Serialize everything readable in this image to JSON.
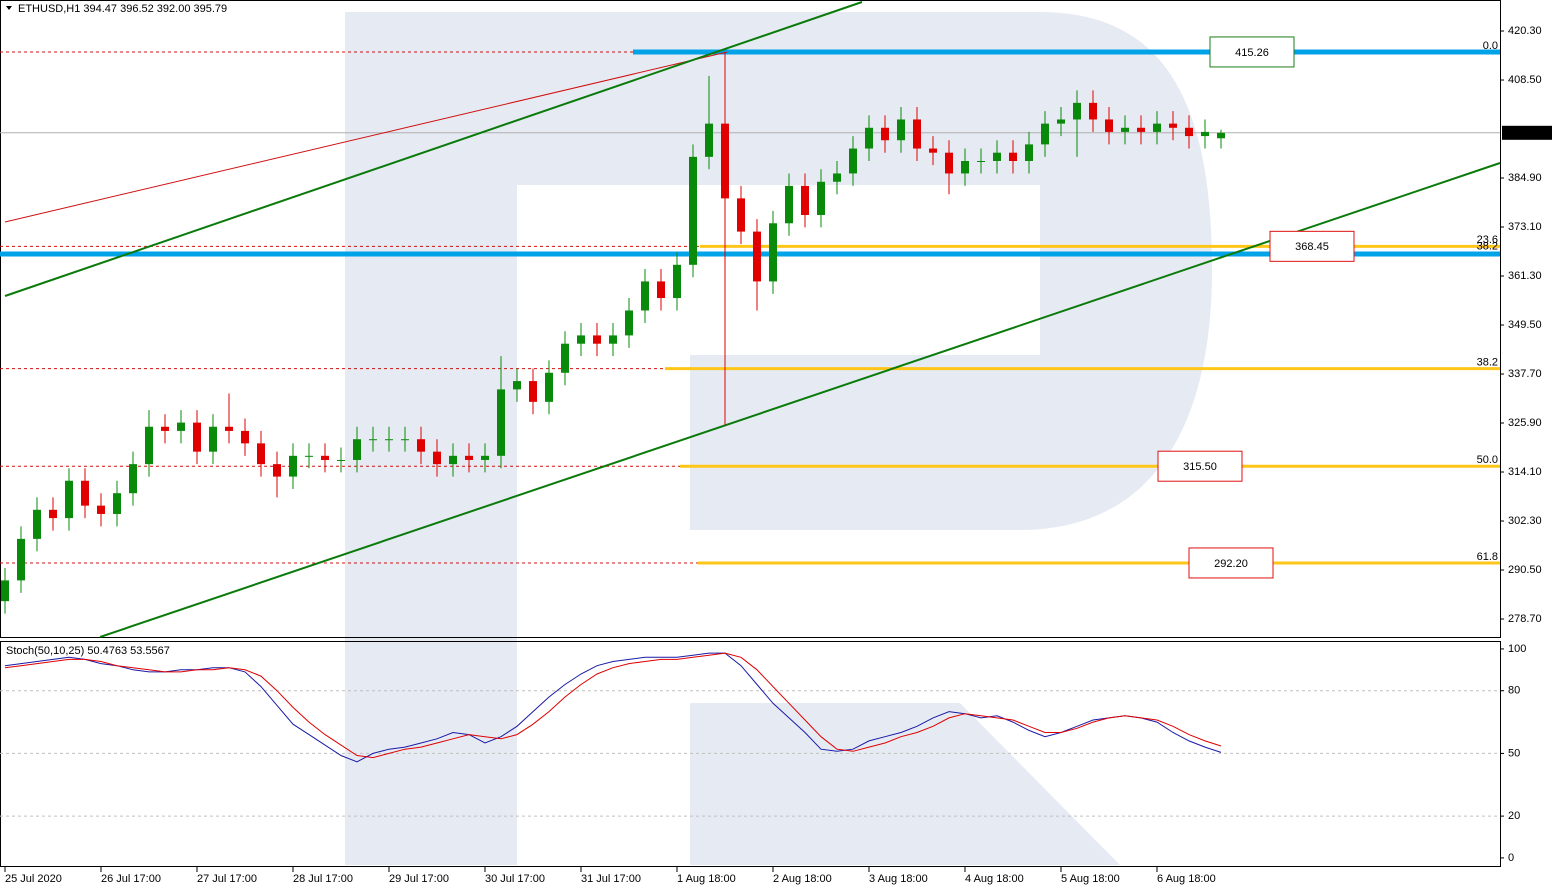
{
  "chart_data": {
    "type": "candlestick",
    "title": "ETHUSD,H1  394.47 396.52 392.00 395.79",
    "x": [
      0,
      4,
      8,
      12,
      16,
      20,
      24,
      28,
      32,
      36,
      40,
      44,
      48,
      52,
      56,
      60,
      64,
      68,
      72,
      76,
      80,
      84,
      88,
      92,
      96,
      100,
      104,
      108,
      112,
      116,
      120,
      124,
      128,
      132,
      136,
      140,
      144,
      148,
      152,
      156,
      160,
      164,
      168,
      172,
      176,
      180,
      184,
      188,
      192,
      196,
      200,
      204,
      208,
      212,
      216,
      220,
      224,
      228,
      232,
      236,
      240,
      244,
      248,
      252,
      256,
      260,
      264,
      268,
      272,
      276,
      280,
      284,
      288,
      292,
      296,
      300,
      304
    ],
    "open": [
      283,
      288,
      298,
      305,
      303,
      312,
      306,
      304,
      309,
      316,
      325,
      324,
      326,
      319,
      325,
      324,
      321,
      316,
      313,
      318,
      318,
      317,
      317,
      322,
      322,
      322,
      322,
      319,
      316,
      318,
      317,
      318,
      334,
      336,
      331,
      338,
      345,
      347,
      345,
      347,
      353,
      360,
      356,
      364,
      390,
      398,
      380,
      372,
      360,
      374,
      383,
      376,
      384,
      386,
      392,
      397,
      394,
      399,
      392,
      391,
      386,
      389,
      389,
      391,
      389,
      393,
      398,
      399,
      403,
      399,
      396,
      397,
      396,
      398,
      397,
      395,
      394.47
    ],
    "high": [
      291,
      301,
      308,
      308,
      315,
      315,
      309,
      312,
      319,
      329,
      328,
      329,
      329,
      328,
      333,
      327,
      324,
      319,
      321,
      321,
      321,
      320,
      325,
      325,
      325,
      325,
      325,
      322,
      321,
      321,
      321,
      342,
      339,
      339,
      341,
      348,
      350,
      350,
      350,
      356,
      363,
      363,
      367,
      393,
      409.5,
      415.26,
      383,
      375,
      377,
      386,
      386,
      387,
      389,
      395,
      400,
      400,
      402,
      402,
      395,
      394,
      392,
      392,
      394,
      394,
      396,
      401,
      402,
      406,
      406,
      402,
      400,
      400,
      401,
      401,
      400,
      399,
      396.52
    ],
    "low": [
      280,
      285,
      295,
      300,
      300,
      303,
      301,
      301,
      306,
      313,
      321,
      321,
      316,
      316,
      321,
      318,
      313,
      308,
      310,
      315,
      314,
      314,
      314,
      319,
      319,
      319,
      316,
      313,
      313,
      314,
      314,
      315,
      331,
      328,
      328,
      335,
      342,
      342,
      342,
      344,
      350,
      353,
      353,
      361,
      387,
      325.4,
      369,
      353,
      357,
      371,
      373,
      373,
      381,
      383,
      389,
      391,
      391,
      389,
      388,
      381,
      383,
      386,
      386,
      386,
      386,
      390,
      395,
      390,
      396,
      393,
      393,
      393,
      393,
      394,
      392,
      392,
      392
    ],
    "close": [
      288,
      298,
      305,
      303,
      312,
      306,
      304,
      309,
      316,
      325,
      324,
      326,
      319,
      325,
      324,
      321,
      316,
      313,
      318,
      318,
      317,
      317,
      322,
      322,
      322,
      322,
      319,
      316,
      318,
      317,
      318,
      334,
      336,
      331,
      338,
      345,
      347,
      345,
      347,
      353,
      360,
      356,
      364,
      390,
      398,
      380,
      372,
      360,
      374,
      383,
      376,
      384,
      386,
      392,
      397,
      394,
      399,
      392,
      391,
      386,
      389,
      389,
      391,
      389,
      393,
      398,
      399,
      403,
      399,
      396,
      397,
      396,
      398,
      397,
      395,
      396,
      395.79
    ],
    "up_color": "#0a8a0a",
    "down_color": "#e00000",
    "xlim": [
      -1.25,
      373.75
    ],
    "ylim": [
      274.37,
      427.77
    ],
    "xticks": [
      {
        "value": 0,
        "label": "25 Jul 2020"
      },
      {
        "value": 24,
        "label": "26 Jul 17:00"
      },
      {
        "value": 48,
        "label": "27 Jul 17:00"
      },
      {
        "value": 72,
        "label": "28 Jul 17:00"
      },
      {
        "value": 96,
        "label": "29 Jul 17:00"
      },
      {
        "value": 120,
        "label": "30 Jul 17:00"
      },
      {
        "value": 144,
        "label": "31 Jul 17:00"
      },
      {
        "value": 168,
        "label": "1 Aug 18:00"
      },
      {
        "value": 192,
        "label": "2 Aug 18:00"
      },
      {
        "value": 216,
        "label": "3 Aug 18:00"
      },
      {
        "value": 240,
        "label": "4 Aug 18:00"
      },
      {
        "value": 264,
        "label": "5 Aug 18:00"
      },
      {
        "value": 288,
        "label": "6 Aug 18:00"
      }
    ],
    "yticks": [
      {
        "value": 420.3,
        "label": "420.30"
      },
      {
        "value": 408.5,
        "label": "408.50"
      },
      {
        "value": 384.9,
        "label": "384.90"
      },
      {
        "value": 373.1,
        "label": "373.10"
      },
      {
        "value": 361.3,
        "label": "361.30"
      },
      {
        "value": 349.5,
        "label": "349.50"
      },
      {
        "value": 337.7,
        "label": "337.70"
      },
      {
        "value": 325.9,
        "label": "325.90"
      },
      {
        "value": 314.1,
        "label": "314.10"
      },
      {
        "value": 302.3,
        "label": "302.30"
      },
      {
        "value": 290.5,
        "label": "290.50"
      },
      {
        "value": 278.7,
        "label": "278.70"
      }
    ],
    "last_price": 395.79,
    "fib_levels": [
      {
        "label": "0.0",
        "price": 415.26
      },
      {
        "label": "23.6",
        "price": 368.45
      },
      {
        "label": "38.2",
        "price": 367.0
      },
      {
        "label": "38.2",
        "price": 339.0
      },
      {
        "label": "50.0",
        "price": 315.5
      },
      {
        "label": "61.8",
        "price": 292.2
      }
    ],
    "support_zones": [
      415.26,
      366.6
    ],
    "price_labels": [
      {
        "value": 415.26,
        "color": "#1b7d1b"
      },
      {
        "value": 368.45,
        "color": "#e01010"
      },
      {
        "value": 315.5,
        "label": "315.50",
        "color": "#e01010"
      },
      {
        "value": 292.2,
        "label": "292.20",
        "color": "#e01010"
      }
    ],
    "stochastic": {
      "title": "Stoch(50,10,25) 50.4763 53.5567",
      "ylim": [
        -3.4,
        103.8
      ],
      "yticks": [
        100,
        80,
        50,
        20,
        0
      ],
      "grid": [
        80,
        50,
        20
      ],
      "series": [
        {
          "color": "#1a1aa8",
          "values": [
            92,
            93,
            94,
            95,
            96,
            95,
            93,
            92,
            90,
            89,
            89,
            90,
            90,
            91,
            91,
            89,
            82,
            73,
            64,
            59,
            54,
            49,
            46,
            50,
            52,
            53,
            55,
            57,
            60,
            59,
            55,
            58,
            63,
            70,
            77,
            83,
            88,
            92,
            94,
            95,
            96,
            96,
            96,
            97,
            98,
            98,
            92,
            83,
            74,
            67,
            60,
            52,
            51,
            52,
            56,
            58,
            60,
            63,
            67,
            70,
            69,
            67,
            68,
            65,
            61,
            58,
            60,
            63,
            66,
            67,
            68,
            67,
            65,
            60,
            56,
            53,
            50.48
          ]
        },
        {
          "color": "#e00000",
          "values": [
            91,
            92,
            93,
            94,
            95,
            95,
            94,
            92,
            91,
            90,
            89,
            89,
            90,
            90,
            91,
            90,
            87,
            80,
            72,
            65,
            59,
            54,
            49,
            48,
            50,
            52,
            53,
            55,
            57,
            59,
            58,
            57,
            59,
            64,
            70,
            77,
            83,
            88,
            91,
            93,
            94,
            95,
            95,
            96,
            97,
            98,
            96,
            90,
            82,
            74,
            66,
            58,
            52,
            51,
            53,
            55,
            58,
            60,
            63,
            67,
            69,
            68,
            67,
            66,
            63,
            60,
            60,
            62,
            65,
            67,
            68,
            67,
            66,
            63,
            59,
            56,
            53.56
          ]
        }
      ]
    }
  }
}
